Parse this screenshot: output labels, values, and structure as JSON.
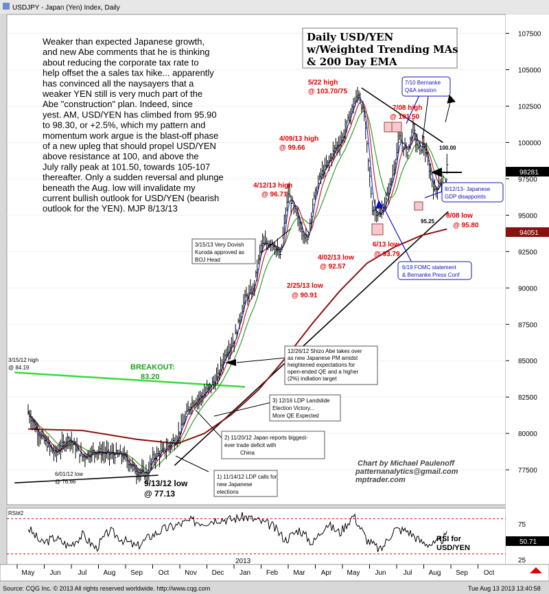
{
  "window_title": "USDJPY - Japan (Yen) Index, Daily",
  "commentary": [
    "Weaker than expected Japanese growth,",
    "and new Abe comments that he is thinking",
    "about reducing the corporate tax rate to",
    "help offset the a sales tax hike... apparently",
    "has convinced all the naysayers that a",
    "weaker YEN still is very much part of the",
    "Abe \"construction\" plan. Indeed, since",
    "yest. AM, USD/YEN has climbed from 95.90",
    "to 98.30, or +2.5%, which my pattern and",
    "momentum work argue is the blast-off phase",
    "of a new upleg that should propel USD/YEN",
    "above resistance at 100, and above the",
    "July rally peak at 101.50, towards 105-107",
    "thereafter. Only a sudden reversal and plunge",
    "beneath the Aug. low will invalidate my",
    "current bullish outlook for USD/YEN (bearish",
    "outlook for the YEN). MJP  8/13/13"
  ],
  "title_box": [
    "Daily USD/YEN",
    "w/Weighted Trending MAs",
    "& 200 Day EMA"
  ],
  "price_badges": {
    "last": "98281",
    "ema200": "94051"
  },
  "rsi_badges": {
    "upper": "75",
    "last": "50.71",
    "lower": "25"
  },
  "rsi_header": "RSI#2",
  "rsi_caption": [
    "RSI for",
    "USD/YEN"
  ],
  "year_label": "2013",
  "credit": [
    "Chart by Michael Paulenoff",
    "patternanalytics@gmail.com",
    "mptrader.com"
  ],
  "footer_left": "Source: CQG Inc. © 2013 All rights reserved worldwide.  http://www.cqg.com",
  "footer_right": "Tue Aug 13 2013 13:40:58",
  "annotations": {
    "high_3_15_12": [
      "3/15/12 high",
      "@ 84.19"
    ],
    "breakout": [
      "BREAKOUT:",
      "83.20"
    ],
    "low_6_01_12": [
      "6/01/12 low",
      "@ 76.66"
    ],
    "low_9_13_12": [
      "9/13/12 low",
      "@ 77.13"
    ],
    "ldp_11_14_12": [
      "1) 11/14/12 LDP calls for",
      "new Japanese",
      "elections"
    ],
    "japan_11_20_12": [
      "2) 11/20/12 Japan reports biggest-",
      "ever trade deficit with",
      "China"
    ],
    "ldp_12_16": [
      "3) 12/16 LDP Landslide",
      "Election Victory...",
      "More QE Expected"
    ],
    "abe_12_26_12": [
      "12/26/12 Shizo Abe takes over",
      "as new Japanese PM amidst",
      "heightened expectations for",
      "open-ended QE and a higher",
      "(2%) indlation target"
    ],
    "kuroda_3_15_13": [
      "3/15/13 Very Dovish",
      "Kuroda approved as",
      "BOJ Head"
    ],
    "low_2_25_13": [
      "2/25/13 low",
      "@ 90.91"
    ],
    "high_4_12_13": [
      "4/12/13 high",
      "@ 96.71"
    ],
    "low_4_02_13": [
      "4/02/13 low",
      "@ 92.57"
    ],
    "high_4_09_13": [
      "4/09/13 high",
      "@ 99.66"
    ],
    "high_5_22": [
      "5/22 high",
      "@ 103.70/75"
    ],
    "low_6_13": [
      "6/13 low",
      "@ 93.79"
    ],
    "high_7_08": [
      "7/08 high",
      "@ 101.50"
    ],
    "level_100": "100.00",
    "level_95_25": "95.25",
    "low_8_08": [
      "8/08 low",
      "@ 95.80"
    ],
    "bernanke_7_10": [
      "7/10 Bernanke",
      "Q&A session"
    ],
    "fomc_6_19": [
      "6/19 FOMC statement",
      "& Bernanke Press Conf"
    ],
    "gdp_8_12_13": [
      "8/12/13- Japanese",
      "GDP disappoints"
    ]
  },
  "colors": {
    "price_bar": "#000000",
    "ma_fast": "#1f3fd0",
    "ma_mid": "#d02020",
    "ma_slow": "#28a028",
    "ema200": "#8b1010",
    "annotation_red": "#e00000",
    "annotation_blue": "#1010c0",
    "breakout": "#33dd33",
    "rsi_line": "#000000",
    "rsi_band": "#e00000"
  },
  "chart_data": [
    {
      "type": "line",
      "subtype": "ohlc-daily-with-moving-averages",
      "title": "Daily USD/YEN w/Weighted Trending MAs & 200 Day EMA",
      "xlabel": "",
      "ylabel": "",
      "x_ticks": [
        "May",
        "Jun",
        "Jul",
        "Aug",
        "Sep",
        "Oct",
        "Nov",
        "Dec",
        "Jan",
        "Feb",
        "Mar",
        "Apr",
        "May",
        "Jun",
        "Jul",
        "Aug",
        "Sep",
        "Oct"
      ],
      "y_ticks": [
        77500,
        80000,
        82500,
        85000,
        87500,
        90000,
        92500,
        95000,
        97500,
        100000,
        102500,
        105000,
        107500
      ],
      "ylim": [
        75100,
        108800
      ],
      "close_series": {
        "name": "Close",
        "x_month_index": [
          0.0,
          0.3,
          0.6,
          1.0,
          1.5,
          2.0,
          2.5,
          3.0,
          3.5,
          4.0,
          4.4,
          4.6,
          5.0,
          5.5,
          6.0,
          6.5,
          7.0,
          7.3,
          7.6,
          8.0,
          8.3,
          8.6,
          9.0,
          9.3,
          9.6,
          10.0,
          10.3,
          10.5,
          10.8,
          11.0,
          11.3,
          11.6,
          12.0,
          12.2,
          12.4,
          12.7,
          13.0,
          13.2,
          13.4,
          13.7,
          14.0,
          14.2,
          14.4,
          14.6,
          14.8,
          15.0,
          15.2,
          15.4,
          15.45
        ],
        "values": [
          81500,
          80300,
          79500,
          78600,
          79700,
          78400,
          78800,
          78600,
          78500,
          77400,
          77200,
          78300,
          78800,
          79700,
          82000,
          82700,
          83900,
          85600,
          86400,
          89300,
          89800,
          92900,
          93200,
          92100,
          96500,
          94500,
          93200,
          95800,
          97800,
          98300,
          99500,
          100300,
          102600,
          103400,
          101800,
          95500,
          95000,
          96000,
          97300,
          100300,
          99300,
          101000,
          99500,
          99800,
          98200,
          96600,
          97300,
          96800,
          98300
        ]
      },
      "ema200": {
        "name": "200 Day EMA",
        "x_month_index": [
          0.0,
          2.0,
          4.0,
          5.5,
          6.5,
          7.5,
          8.5,
          9.5,
          10.5,
          11.5,
          12.5,
          13.5,
          14.5,
          15.45
        ],
        "values": [
          80300,
          80200,
          79600,
          79300,
          80000,
          81300,
          83000,
          85200,
          87600,
          89800,
          91700,
          92800,
          93600,
          94050
        ]
      },
      "trendlines": [
        {
          "name": "Resistance",
          "points": [
            [
              12.3,
              103750
            ],
            [
              15.3,
              100000
            ]
          ]
        },
        {
          "name": "Support",
          "points": [
            [
              5.4,
              77800
            ],
            [
              15.5,
              95250
            ]
          ]
        },
        {
          "name": "Breakout",
          "points": [
            [
              -0.5,
              84190
            ],
            [
              8.0,
              83200
            ]
          ]
        },
        {
          "name": "Uptrend",
          "points": [
            [
              -0.5,
              76600
            ],
            [
              4.8,
              77130
            ]
          ]
        }
      ]
    },
    {
      "type": "line",
      "title": "RSI#2",
      "series": [
        {
          "name": "RSI",
          "x_month_index": [
            0.0,
            0.5,
            1.0,
            1.5,
            2.0,
            2.5,
            3.0,
            3.5,
            4.0,
            4.5,
            5.0,
            5.5,
            6.0,
            6.5,
            7.0,
            7.5,
            8.0,
            8.5,
            9.0,
            9.5,
            10.0,
            10.5,
            11.0,
            11.5,
            12.0,
            12.5,
            13.0,
            13.5,
            14.0,
            14.5,
            15.0,
            15.45
          ],
          "values": [
            62,
            40,
            48,
            36,
            52,
            33,
            58,
            45,
            35,
            50,
            60,
            66,
            72,
            70,
            75,
            74,
            78,
            72,
            65,
            45,
            60,
            40,
            68,
            55,
            80,
            45,
            30,
            60,
            58,
            42,
            38,
            50.71
          ]
        }
      ],
      "y_ticks": [
        25,
        50,
        75
      ],
      "ylim": [
        10,
        90
      ]
    }
  ]
}
